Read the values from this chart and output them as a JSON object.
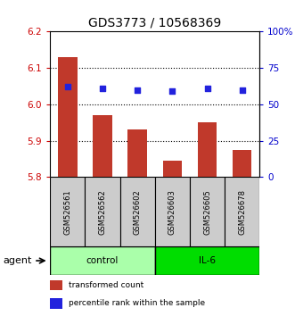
{
  "title": "GDS3773 / 10568369",
  "samples": [
    "GSM526561",
    "GSM526562",
    "GSM526602",
    "GSM526603",
    "GSM526605",
    "GSM526678"
  ],
  "bar_values": [
    6.13,
    5.97,
    5.93,
    5.845,
    5.95,
    5.875
  ],
  "bar_base": 5.8,
  "percentile_values": [
    62,
    61,
    60,
    59,
    61,
    60
  ],
  "ylim_left": [
    5.8,
    6.2
  ],
  "ylim_right": [
    0,
    100
  ],
  "yticks_left": [
    5.8,
    5.9,
    6.0,
    6.1,
    6.2
  ],
  "yticks_right": [
    0,
    25,
    50,
    75,
    100
  ],
  "ytick_labels_right": [
    "0",
    "25",
    "50",
    "75",
    "100%"
  ],
  "bar_color": "#c0392b",
  "dot_color": "#2222dd",
  "groups": [
    {
      "label": "control",
      "indices": [
        0,
        1,
        2
      ],
      "color": "#aaffaa"
    },
    {
      "label": "IL-6",
      "indices": [
        3,
        4,
        5
      ],
      "color": "#00dd00"
    }
  ],
  "agent_label": "agent",
  "legend_items": [
    {
      "label": "transformed count",
      "color": "#c0392b"
    },
    {
      "label": "percentile rank within the sample",
      "color": "#2222dd"
    }
  ],
  "sample_box_color": "#cccccc",
  "title_fontsize": 10,
  "tick_fontsize": 7.5
}
